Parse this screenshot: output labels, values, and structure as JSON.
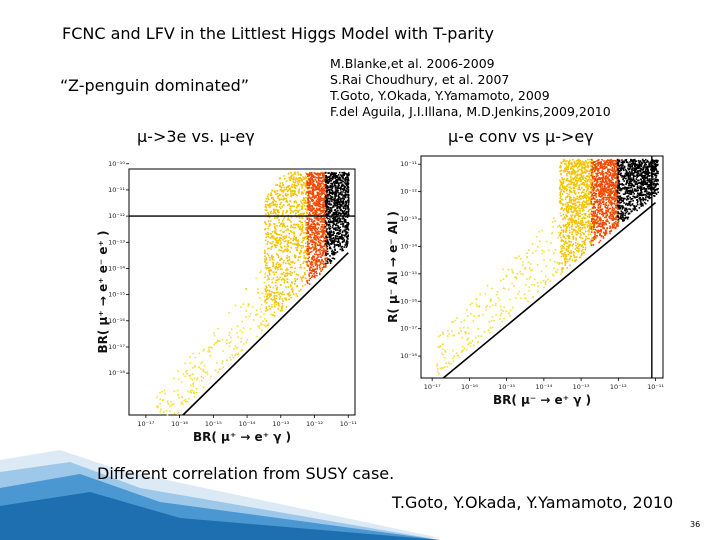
{
  "slide": {
    "title": "FCNC and LFV in the Littlest Higgs Model with T-parity",
    "quote": "“Z-penguin dominated”",
    "references": [
      "M.Blanke,et al. 2006-2009",
      "S.Rai Choudhury, et al. 2007",
      "T.Goto, Y.Okada, Y.Yamamoto, 2009",
      "F.del Aguila, J.I.Illana, M.D.Jenkins,2009,2010"
    ],
    "caption_left": "μ->3e vs. μ-eγ",
    "caption_right": "μ-e conv vs μ->eγ",
    "note": "Different correlation from SUSY case.",
    "credit": "T.Goto, Y.Okada, Y.Yamamoto, 2010",
    "page_number": "36"
  },
  "colors": {
    "yellow": "#f5c400",
    "light_yellow": "#f7df3c",
    "orange": "#f04a00",
    "black": "#000000",
    "deco_blue": "#1d6fb0"
  },
  "chart_data": [
    {
      "type": "scatter",
      "xlabel": "BR( μ⁺ → e⁺ γ )",
      "ylabel": "BR( μ⁺ → e⁺ e⁻ e⁺ )",
      "x_log_range": [
        -17.5,
        -10.8
      ],
      "y_log_range": [
        -19.6,
        -10.2
      ],
      "x_ticks": [
        "10⁻¹⁷",
        "10⁻¹⁶",
        "10⁻¹⁵",
        "10⁻¹⁴",
        "10⁻¹³",
        "10⁻¹²",
        "10⁻¹¹"
      ],
      "y_ticks": [
        "10⁻¹⁸",
        "10⁻¹⁷",
        "10⁻¹⁶",
        "10⁻¹⁵",
        "10⁻¹⁴",
        "10⁻¹³",
        "10⁻¹²",
        "10⁻¹¹",
        "10⁻¹⁰"
      ],
      "bands": [
        {
          "color_key": "light_yellow",
          "x_log_min": -16.8,
          "x_log_max": -13.2,
          "density": 0.25
        },
        {
          "color_key": "yellow",
          "x_log_min": -13.5,
          "x_log_max": -12.2,
          "density": 1
        },
        {
          "color_key": "orange",
          "x_log_min": -12.25,
          "x_log_max": -11.65,
          "density": 1
        },
        {
          "color_key": "black",
          "x_log_min": -11.7,
          "x_log_max": -11.0,
          "density": 1
        }
      ],
      "diagonal_log": [
        [
          -15.9,
          -19.6
        ],
        [
          -11.0,
          -13.4
        ]
      ],
      "upper_limit_line_log_y": -12
    },
    {
      "type": "scatter",
      "xlabel": "BR( μ⁻ → e⁺ γ )",
      "ylabel": "R( μ⁻ Al → e⁻ Al )",
      "x_log_range": [
        -17.3,
        -10.8
      ],
      "y_log_range": [
        -18.8,
        -10.7
      ],
      "x_ticks": [
        "10⁻¹⁷",
        "10⁻¹⁶",
        "10⁻¹⁵",
        "10⁻¹⁴",
        "10⁻¹³",
        "10⁻¹²",
        "10⁻¹¹"
      ],
      "y_ticks": [
        "10⁻¹⁸",
        "10⁻¹⁷",
        "10⁻¹⁶",
        "10⁻¹⁵",
        "10⁻¹⁴",
        "10⁻¹³",
        "10⁻¹²",
        "10⁻¹¹"
      ],
      "bands": [
        {
          "color_key": "light_yellow",
          "x_log_min": -16.9,
          "x_log_max": -13.5,
          "density": 0.3
        },
        {
          "color_key": "yellow",
          "x_log_min": -13.6,
          "x_log_max": -12.7,
          "density": 1
        },
        {
          "color_key": "orange",
          "x_log_min": -12.75,
          "x_log_max": -12.0,
          "density": 1
        },
        {
          "color_key": "black",
          "x_log_min": -12.05,
          "x_log_max": -10.95,
          "density": 1
        }
      ],
      "diagonal_log": [
        [
          -16.7,
          -18.8
        ],
        [
          -11.0,
          -12.4
        ]
      ],
      "upper_limit_line_log_x": -11.1
    }
  ]
}
